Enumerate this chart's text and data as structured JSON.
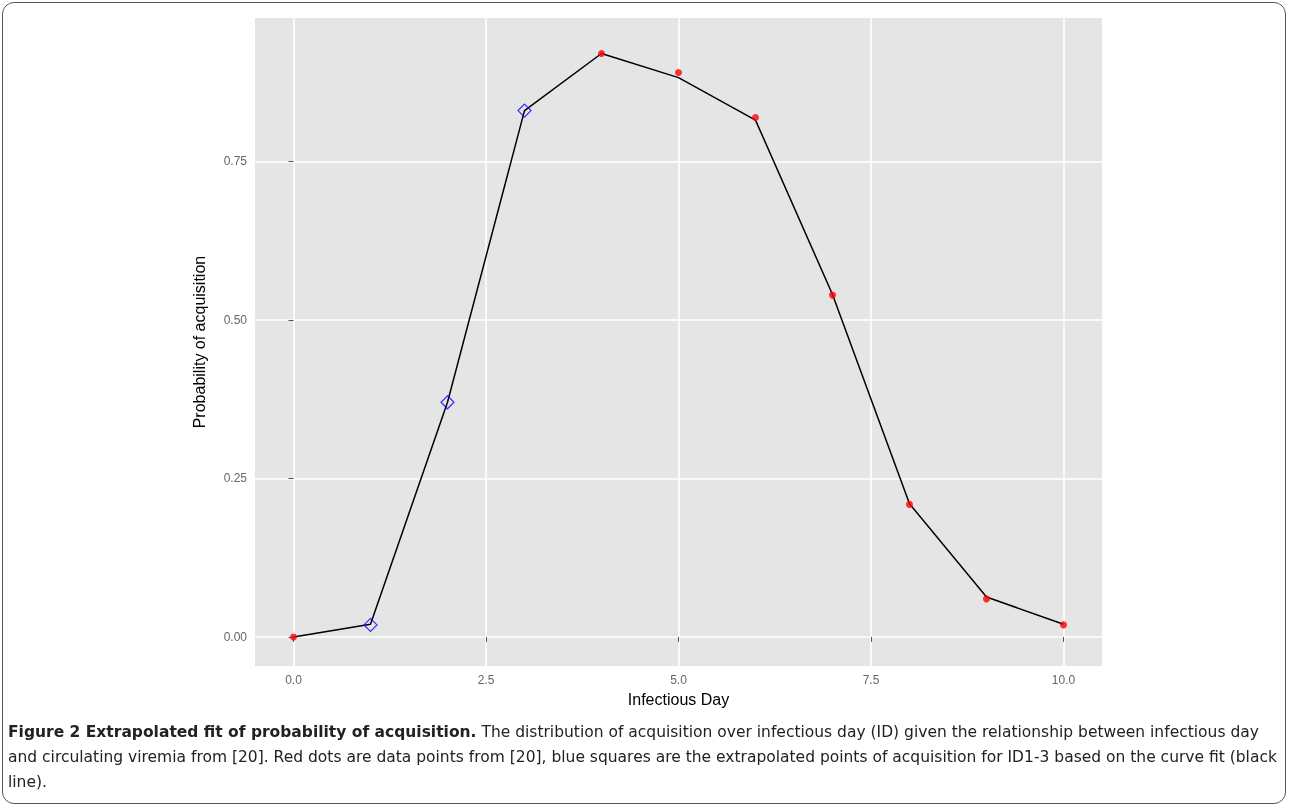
{
  "chart_data": {
    "type": "line",
    "title": "Figure 2 Extrapolated fit of probability of acquisition.",
    "xlabel": "Infectious Day",
    "ylabel": "Probability of acquisition",
    "annotations": [
      "The distribution of acquisition over infectious day (ID) given the relationship between infectious day and circulating viremia from [20]. Red dots are data points from [20], blue squares are the extrapolated points of acquisition for ID1-3 based on the curve fit (black line)."
    ],
    "series": [
      {
        "color": "#000000",
        "marker": "none",
        "x": [
          0,
          1,
          2,
          3,
          4,
          5,
          6,
          7,
          8,
          9,
          10
        ],
        "values": [
          0,
          0.02,
          0.37,
          0.83,
          0.92,
          0.882,
          0.815,
          0.54,
          0.21,
          0.063,
          0.02
        ]
      },
      {
        "type": "scatter",
        "color": "#ff0000",
        "marker": "circle",
        "x": [
          0,
          4,
          5,
          6,
          7,
          8,
          9,
          10
        ],
        "values": [
          0,
          0.92,
          0.89,
          0.819,
          0.539,
          0.209,
          0.06,
          0.019
        ]
      },
      {
        "type": "scatter",
        "color": "#0000ff",
        "marker": "diamond",
        "x": [
          1,
          2,
          3
        ],
        "values": [
          0.019,
          0.37,
          0.83
        ]
      }
    ],
    "xlim": [
      -0.5,
      10.5
    ],
    "xticks": [
      {
        "value": 0,
        "label": "0.0"
      },
      {
        "value": 2.5,
        "label": "2.5"
      },
      {
        "value": 5,
        "label": "5.0"
      },
      {
        "value": 7.5,
        "label": "7.5"
      },
      {
        "value": 10,
        "label": "10.0"
      }
    ],
    "ylim": [
      -0.046,
      0.976
    ],
    "yticks": [
      {
        "value": 0,
        "label": "0.00"
      },
      {
        "value": 0.25,
        "label": "0.25"
      },
      {
        "value": 0.5,
        "label": "0.50"
      },
      {
        "value": 0.75,
        "label": "0.75"
      }
    ],
    "grid": true
  }
}
